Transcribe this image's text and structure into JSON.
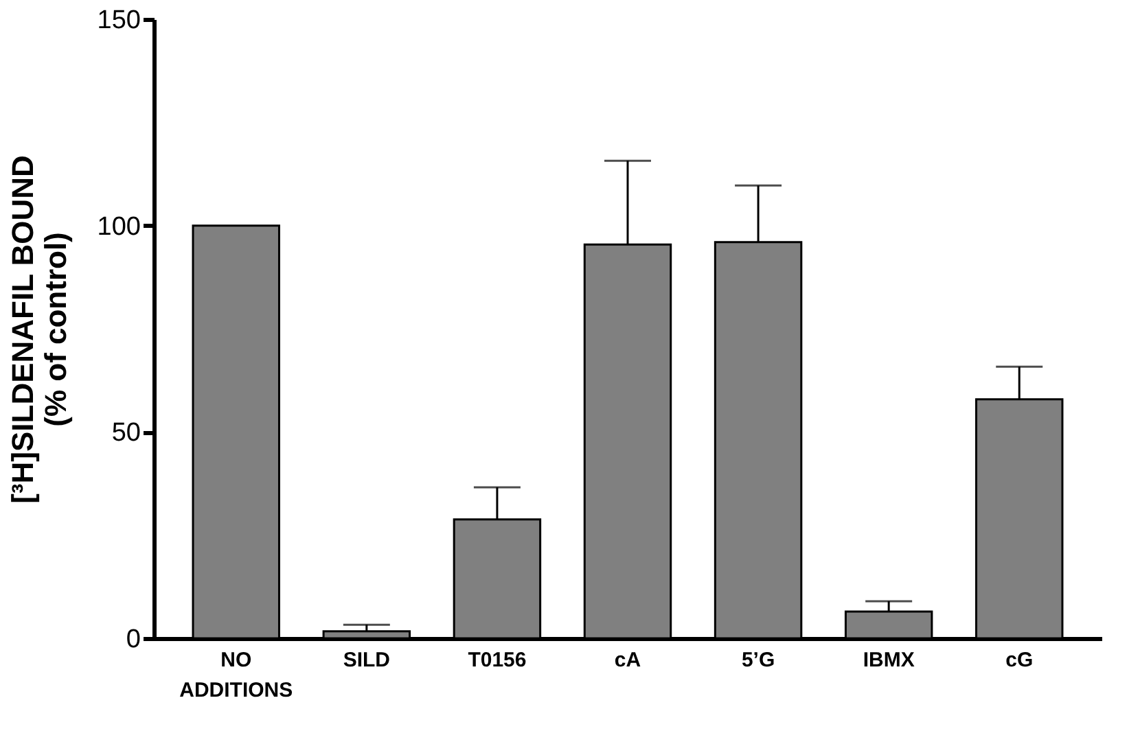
{
  "chart_data": {
    "type": "bar",
    "ylabel": "[³H]SILDENAFIL BOUND\n(% of control)",
    "categories": [
      "NO ADDITIONS",
      "SILD",
      "T0156",
      "cA",
      "5’G",
      "IBMX",
      "cG"
    ],
    "values": [
      100,
      1.7,
      28.8,
      95.4,
      96.0,
      6.5,
      57.9
    ],
    "errors": [
      null,
      [
        1.7,
        3.3
      ],
      [
        28.8,
        36.6
      ],
      [
        95.4,
        115.7
      ],
      [
        96.0,
        109.7
      ],
      [
        6.5,
        9.0
      ],
      [
        57.9,
        65.8
      ]
    ],
    "color": "#808080",
    "ylim": [
      0,
      150
    ],
    "yticks": [
      0,
      50,
      100,
      150
    ],
    "grid": false
  }
}
